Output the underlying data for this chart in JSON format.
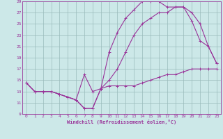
{
  "xlabel": "Windchill (Refroidissement éolien,°C)",
  "ylabel": "",
  "xlim": [
    -0.5,
    23.5
  ],
  "ylim": [
    9,
    29
  ],
  "xticks": [
    0,
    1,
    2,
    3,
    4,
    5,
    6,
    7,
    8,
    9,
    10,
    11,
    12,
    13,
    14,
    15,
    16,
    17,
    18,
    19,
    20,
    21,
    22,
    23
  ],
  "yticks": [
    9,
    11,
    13,
    15,
    17,
    19,
    21,
    23,
    25,
    27,
    29
  ],
  "bg_color": "#cce8e8",
  "line_color": "#993399",
  "grid_color": "#99bbbb",
  "line1_x": [
    0,
    1,
    2,
    3,
    4,
    5,
    6,
    7,
    8,
    9,
    10,
    11,
    12,
    13,
    14,
    15,
    16,
    17,
    18,
    19,
    20,
    21,
    22,
    23
  ],
  "line1_y": [
    14.5,
    13,
    13,
    13,
    12.5,
    12,
    11.5,
    10,
    10,
    13.5,
    14,
    14,
    14,
    14,
    14.5,
    15,
    15.5,
    16,
    16,
    16.5,
    17,
    17,
    17,
    17
  ],
  "line2_x": [
    0,
    1,
    2,
    3,
    4,
    5,
    6,
    7,
    8,
    9,
    10,
    11,
    12,
    13,
    14,
    15,
    16,
    17,
    18,
    19,
    20,
    21,
    22,
    23
  ],
  "line2_y": [
    14.5,
    13,
    13,
    13,
    12.5,
    12,
    11.5,
    16,
    13,
    13.5,
    20,
    23.5,
    26,
    27.5,
    29,
    29,
    29,
    28,
    28,
    28,
    27,
    25,
    21,
    18
  ],
  "line3_x": [
    0,
    1,
    2,
    3,
    4,
    5,
    6,
    7,
    8,
    9,
    10,
    11,
    12,
    13,
    14,
    15,
    16,
    17,
    18,
    19,
    20,
    21,
    22,
    23
  ],
  "line3_y": [
    14.5,
    13,
    13,
    13,
    12.5,
    12,
    11.5,
    10,
    10,
    13.5,
    15,
    17,
    20,
    23,
    25,
    26,
    27,
    27,
    28,
    28,
    25.5,
    22,
    21,
    18
  ]
}
